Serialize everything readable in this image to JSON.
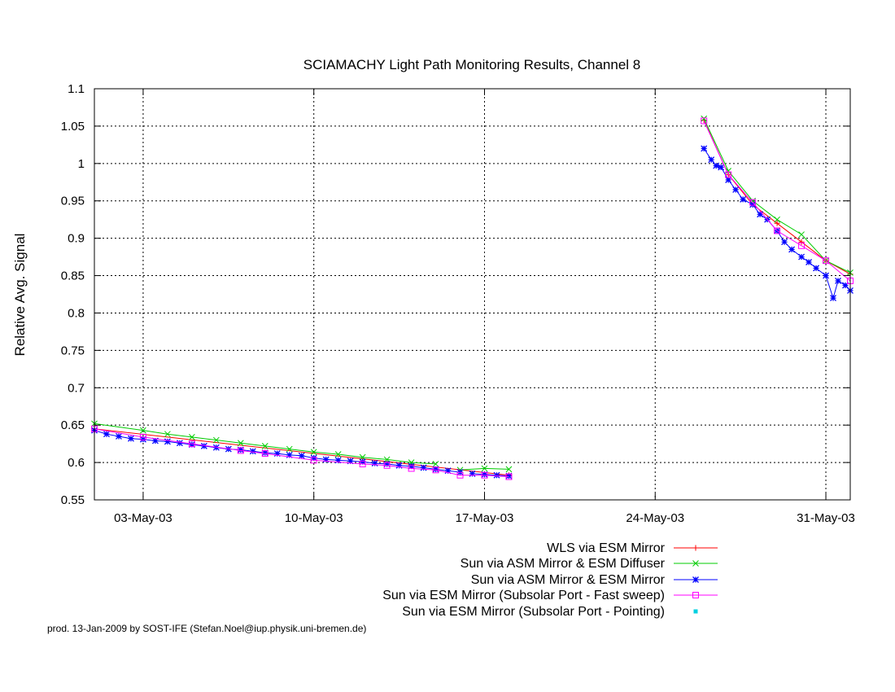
{
  "chart_data": {
    "type": "line",
    "title": "SCIAMACHY Light Path Monitoring Results, Channel 8",
    "xlabel": "",
    "ylabel": "Relative Avg. Signal",
    "x_is_date": true,
    "xlim": [
      "2003-05-01",
      "2003-06-01"
    ],
    "ylim": [
      0.55,
      1.1
    ],
    "x_ticks": [
      {
        "date": "2003-05-03",
        "label": "03-May-03"
      },
      {
        "date": "2003-05-10",
        "label": "10-May-03"
      },
      {
        "date": "2003-05-17",
        "label": "17-May-03"
      },
      {
        "date": "2003-05-24",
        "label": "24-May-03"
      },
      {
        "date": "2003-05-31",
        "label": "31-May-03"
      }
    ],
    "y_ticks": [
      {
        "value": 0.55,
        "label": "0.55"
      },
      {
        "value": 0.6,
        "label": "0.6"
      },
      {
        "value": 0.65,
        "label": "0.65"
      },
      {
        "value": 0.7,
        "label": "0.7"
      },
      {
        "value": 0.75,
        "label": "0.75"
      },
      {
        "value": 0.8,
        "label": "0.8"
      },
      {
        "value": 0.85,
        "label": "0.85"
      },
      {
        "value": 0.9,
        "label": "0.9"
      },
      {
        "value": 0.95,
        "label": "0.95"
      },
      {
        "value": 1,
        "label": "1"
      },
      {
        "value": 1.05,
        "label": "1.05"
      },
      {
        "value": 1.1,
        "label": "1.1"
      }
    ],
    "grid": true,
    "legend_position": "bottom-right, below plot",
    "series": [
      {
        "name": "WLS via ESM Mirror",
        "color": "#ff0000",
        "marker": "plus",
        "segments": [
          [
            [
              "2003-05-01",
              0.645
            ],
            [
              "2003-05-18",
              0.583
            ]
          ],
          [
            [
              "2003-05-26",
              1.058
            ],
            [
              "2003-05-27",
              0.985
            ],
            [
              "2003-05-28",
              0.945
            ],
            [
              "2003-05-29",
              0.92
            ],
            [
              "2003-05-30",
              0.895
            ],
            [
              "2003-05-31",
              0.87
            ],
            [
              "2003-06-01",
              0.852
            ]
          ]
        ]
      },
      {
        "name": "Sun via ASM Mirror & ESM Diffuser",
        "color": "#00cc00",
        "marker": "cross",
        "segments": [
          [
            [
              "2003-05-01",
              0.652
            ],
            [
              "2003-05-03",
              0.643
            ],
            [
              "2003-05-04",
              0.638
            ],
            [
              "2003-05-05",
              0.634
            ],
            [
              "2003-05-06",
              0.63
            ],
            [
              "2003-05-07",
              0.626
            ],
            [
              "2003-05-08",
              0.622
            ],
            [
              "2003-05-09",
              0.618
            ],
            [
              "2003-05-10",
              0.614
            ],
            [
              "2003-05-11",
              0.611
            ],
            [
              "2003-05-12",
              0.607
            ],
            [
              "2003-05-13",
              0.604
            ],
            [
              "2003-05-14",
              0.6
            ],
            [
              "2003-05-15",
              0.598
            ]
          ],
          [
            [
              "2003-05-16",
              0.59
            ],
            [
              "2003-05-17",
              0.592
            ],
            [
              "2003-05-18",
              0.591
            ]
          ],
          [
            [
              "2003-05-26",
              1.06
            ],
            [
              "2003-05-27",
              0.99
            ],
            [
              "2003-05-28",
              0.95
            ],
            [
              "2003-05-29",
              0.925
            ],
            [
              "2003-05-30",
              0.905
            ],
            [
              "2003-05-31",
              0.87
            ],
            [
              "2003-06-01",
              0.854
            ]
          ]
        ]
      },
      {
        "name": "Sun via ASM Mirror & ESM Mirror",
        "color": "#0000ff",
        "marker": "star",
        "segments": [
          [
            [
              "2003-05-01",
              0.643
            ],
            [
              "2003-05-01.5",
              0.638
            ],
            [
              "2003-05-02",
              0.635
            ],
            [
              "2003-05-02.5",
              0.632
            ],
            [
              "2003-05-03",
              0.631
            ],
            [
              "2003-05-03.5",
              0.629
            ],
            [
              "2003-05-04",
              0.628
            ],
            [
              "2003-05-04.5",
              0.626
            ],
            [
              "2003-05-05",
              0.624
            ],
            [
              "2003-05-05.5",
              0.622
            ],
            [
              "2003-05-06",
              0.62
            ],
            [
              "2003-05-06.5",
              0.618
            ],
            [
              "2003-05-07",
              0.617
            ],
            [
              "2003-05-07.5",
              0.615
            ],
            [
              "2003-05-08",
              0.613
            ],
            [
              "2003-05-08.5",
              0.612
            ],
            [
              "2003-05-09",
              0.61
            ],
            [
              "2003-05-09.5",
              0.609
            ],
            [
              "2003-05-10",
              0.606
            ],
            [
              "2003-05-10.5",
              0.604
            ],
            [
              "2003-05-11",
              0.603
            ],
            [
              "2003-05-11.5",
              0.602
            ],
            [
              "2003-05-12",
              0.601
            ],
            [
              "2003-05-12.5",
              0.599
            ],
            [
              "2003-05-13",
              0.598
            ],
            [
              "2003-05-13.5",
              0.596
            ],
            [
              "2003-05-14",
              0.595
            ],
            [
              "2003-05-14.5",
              0.593
            ],
            [
              "2003-05-15",
              0.591
            ],
            [
              "2003-05-15.5",
              0.589
            ],
            [
              "2003-05-16",
              0.587
            ]
          ],
          [
            [
              "2003-05-16.5",
              0.585
            ],
            [
              "2003-05-17",
              0.584
            ],
            [
              "2003-05-17.5",
              0.583
            ],
            [
              "2003-05-18",
              0.582
            ]
          ],
          [
            [
              "2003-05-26",
              1.02
            ],
            [
              "2003-05-26.3",
              1.005
            ],
            [
              "2003-05-26.5",
              0.997
            ],
            [
              "2003-05-26.7",
              0.995
            ],
            [
              "2003-05-27",
              0.978
            ],
            [
              "2003-05-27.3",
              0.965
            ],
            [
              "2003-05-27.6",
              0.952
            ],
            [
              "2003-05-28",
              0.945
            ],
            [
              "2003-05-28.3",
              0.932
            ],
            [
              "2003-05-28.6",
              0.925
            ],
            [
              "2003-05-29",
              0.91
            ],
            [
              "2003-05-29.3",
              0.895
            ],
            [
              "2003-05-29.6",
              0.885
            ],
            [
              "2003-05-30",
              0.875
            ],
            [
              "2003-05-30.3",
              0.868
            ],
            [
              "2003-05-30.6",
              0.86
            ],
            [
              "2003-05-31",
              0.85
            ],
            [
              "2003-05-31.3",
              0.82
            ],
            [
              "2003-05-31.5",
              0.843
            ],
            [
              "2003-05-31.8",
              0.837
            ],
            [
              "2003-06-01",
              0.83
            ]
          ]
        ]
      },
      {
        "name": "Sun via ESM Mirror (Subsolar Port - Fast sweep)",
        "color": "#ff00ff",
        "marker": "square",
        "segments": [
          [
            [
              "2003-05-01",
              0.645
            ],
            [
              "2003-05-03",
              0.634
            ],
            [
              "2003-05-05",
              0.625
            ],
            [
              "2003-05-07",
              0.616
            ],
            [
              "2003-05-08",
              0.612
            ],
            [
              "2003-05-10",
              0.603
            ],
            [
              "2003-05-12",
              0.598
            ],
            [
              "2003-05-13",
              0.596
            ],
            [
              "2003-05-14",
              0.592
            ],
            [
              "2003-05-15",
              0.59
            ],
            [
              "2003-05-16",
              0.583
            ],
            [
              "2003-05-17",
              0.583
            ],
            [
              "2003-05-18",
              0.581
            ]
          ],
          [
            [
              "2003-05-26",
              1.057
            ],
            [
              "2003-05-27",
              0.985
            ],
            [
              "2003-05-28",
              0.948
            ],
            [
              "2003-05-29",
              0.91
            ],
            [
              "2003-05-30",
              0.89
            ],
            [
              "2003-05-31",
              0.87
            ],
            [
              "2003-06-01",
              0.843
            ]
          ]
        ]
      },
      {
        "name": "Sun via ESM Mirror (Subsolar Port - Pointing)",
        "color": "#00d0e0",
        "marker": "dot",
        "segments": []
      }
    ]
  },
  "footer": "prod. 13-Jan-2009 by SOST-IFE (Stefan.Noel@iup.physik.uni-bremen.de)"
}
